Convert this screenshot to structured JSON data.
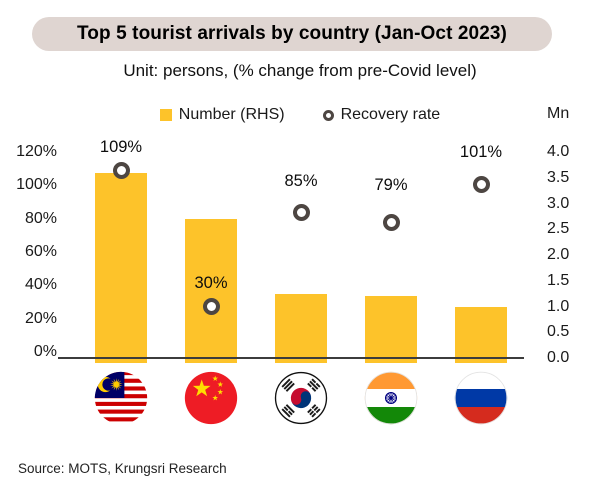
{
  "title": "Top 5 tourist arrivals by country (Jan-Oct 2023)",
  "subtitle": "Unit: persons, (% change from pre-Covid level)",
  "legend": {
    "items": [
      {
        "label": "Number (RHS)",
        "marker": "square-swatch"
      },
      {
        "label": "Recovery rate",
        "marker": "ring-swatch"
      }
    ]
  },
  "right_axis_unit": "Mn",
  "source": "Source: MOTS, Krungsri Research",
  "colors": {
    "bar": "#FDC32A",
    "marker_ring": "#4D4642",
    "title_background": "#DFD5D1",
    "axis_line": "#3C3C3C"
  },
  "chart_data": {
    "type": "bar",
    "title": "Top 5 tourist arrivals by country (Jan-Oct 2023)",
    "categories": [
      "Malaysia",
      "China",
      "South Korea",
      "India",
      "Russia"
    ],
    "series": [
      {
        "name": "Number (RHS)",
        "type": "bar",
        "axis": "right",
        "unit": "Mn persons",
        "values": [
          3.6,
          2.7,
          1.25,
          1.2,
          1.0
        ]
      },
      {
        "name": "Recovery rate",
        "type": "scatter",
        "axis": "left",
        "unit": "% of pre-Covid level",
        "values": [
          109,
          30,
          85,
          79,
          101
        ],
        "labels": [
          "109%",
          "30%",
          "85%",
          "79%",
          "101%"
        ]
      }
    ],
    "left_axis": {
      "unit": "%",
      "min": 0,
      "max": 120,
      "step": 20,
      "ticks": [
        "120%",
        "100%",
        "80%",
        "60%",
        "40%",
        "20%",
        "0%"
      ]
    },
    "right_axis": {
      "unit": "Mn",
      "min": 0,
      "max": 4,
      "step": 0.5,
      "ticks": [
        "4.0",
        "3.5",
        "3.0",
        "2.5",
        "2.0",
        "1.5",
        "1.0",
        "0.5",
        "0.0"
      ]
    },
    "gridlines": false,
    "legend_position": "top"
  }
}
